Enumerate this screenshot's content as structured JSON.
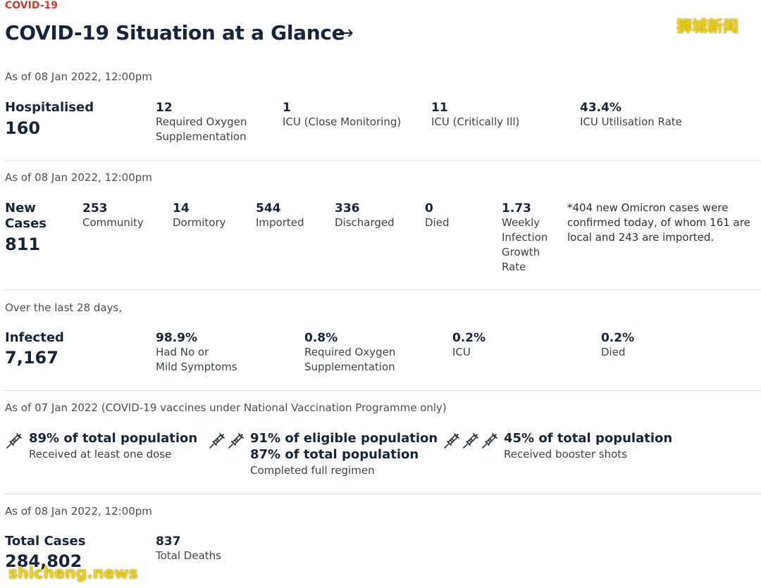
{
  "header": {
    "eyebrow": "COVID-19",
    "title": "COVID-19 Situation at a Glance",
    "arrow": "→"
  },
  "watermark": {
    "cn": "狮城新闻",
    "en": "shicheng.news"
  },
  "hospital": {
    "asof": "As of 08 Jan 2022, 12:00pm",
    "label": "Hospitalised",
    "value": "160",
    "stats": [
      {
        "value": "12",
        "label1": "Required Oxygen",
        "label2": "Supplementation"
      },
      {
        "value": "1",
        "label1": "ICU (Close Monitoring)",
        "label2": ""
      },
      {
        "value": "11",
        "label1": "ICU (Critically Ill)",
        "label2": ""
      },
      {
        "value": "43.4%",
        "label1": "ICU Utilisation Rate",
        "label2": ""
      }
    ]
  },
  "cases": {
    "asof": "As of 08 Jan 2022, 12:00pm",
    "label1": "New",
    "label2": "Cases",
    "value": "811",
    "stats": [
      {
        "value": "253",
        "label": "Community"
      },
      {
        "value": "14",
        "label": "Dormitory"
      },
      {
        "value": "544",
        "label": "Imported"
      },
      {
        "value": "336",
        "label": "Discharged"
      },
      {
        "value": "0",
        "label": "Died"
      }
    ],
    "growth": {
      "value": "1.73",
      "l1": "Weekly",
      "l2": "Infection",
      "l3": "Growth",
      "l4": "Rate"
    },
    "note": "*404 new Omicron cases were confirmed today, of whom 161 are local and 243 are imported."
  },
  "infected": {
    "asof": "Over the last 28 days,",
    "label": "Infected",
    "value": "7,167",
    "stats": [
      {
        "value": "98.9%",
        "label1": "Had No or",
        "label2": "Mild Symptoms"
      },
      {
        "value": "0.8%",
        "label1": "Required Oxygen",
        "label2": "Supplementation"
      },
      {
        "value": "0.2%",
        "label1": "ICU",
        "label2": ""
      },
      {
        "value": "0.2%",
        "label1": "Died",
        "label2": ""
      }
    ]
  },
  "vaccination": {
    "asof": "As of 07 Jan 2022 (COVID-19 vaccines under National Vaccination Programme only)",
    "items": [
      {
        "head": "89% of total population",
        "head2": "",
        "sub": "Received at least one dose",
        "icon": "syringe-icon"
      },
      {
        "head": "91% of eligible population",
        "head2": "87% of total population",
        "sub": "Completed full regimen",
        "icon": "syringe-icon"
      },
      {
        "head": "45% of total population",
        "head2": "",
        "sub": "Received booster shots",
        "icon": "syringe-icon"
      }
    ]
  },
  "totals": {
    "asof": "As of 08 Jan 2022, 12:00pm",
    "label": "Total Cases",
    "value": "284,802",
    "deaths_value": "837",
    "deaths_label": "Total Deaths"
  }
}
